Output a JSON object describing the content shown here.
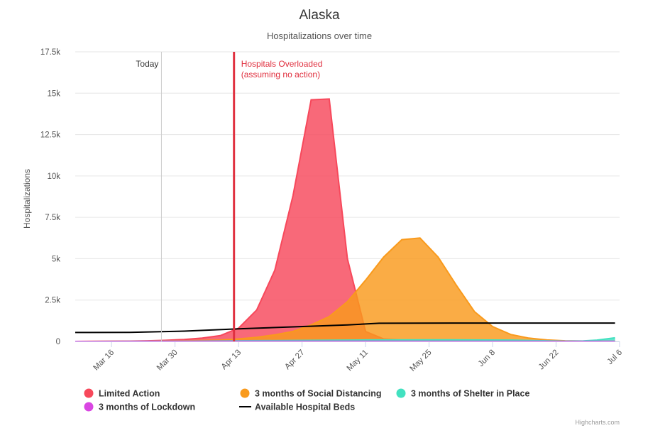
{
  "chart_data": {
    "type": "area",
    "title": "Alaska",
    "subtitle": "Hospitalizations over time",
    "ylabel": "Hospitalizations",
    "ylim": [
      0,
      17500
    ],
    "yticks": [
      0,
      2500,
      5000,
      7500,
      10000,
      12500,
      15000,
      17500
    ],
    "ytick_labels": [
      "0",
      "2.5k",
      "5k",
      "7.5k",
      "10k",
      "12.5k",
      "15k",
      "17.5k"
    ],
    "xlim": [
      "2020-03-08",
      "2020-07-06"
    ],
    "xticks": [
      "2020-03-16",
      "2020-03-30",
      "2020-04-13",
      "2020-04-27",
      "2020-05-11",
      "2020-05-25",
      "2020-06-08",
      "2020-06-22",
      "2020-07-06"
    ],
    "xtick_labels": [
      "Mar 16",
      "Mar 30",
      "Apr 13",
      "Apr 27",
      "May 11",
      "May 25",
      "Jun 8",
      "Jun 22",
      "Jul 6"
    ],
    "grid": true,
    "legend_position": "bottom",
    "plot_lines": [
      {
        "label": "Today",
        "x": "2020-03-27",
        "color": "#cccccc"
      },
      {
        "label_lines": [
          "Hospitals Overloaded",
          "(assuming no action)"
        ],
        "x": "2020-04-12",
        "color": "#e0303f"
      }
    ],
    "series": [
      {
        "name": "Limited Action",
        "kind": "area",
        "color": "#f7485b",
        "points": [
          [
            "2020-03-08",
            0
          ],
          [
            "2020-03-12",
            5
          ],
          [
            "2020-03-16",
            10
          ],
          [
            "2020-03-20",
            20
          ],
          [
            "2020-03-24",
            40
          ],
          [
            "2020-03-28",
            70
          ],
          [
            "2020-04-01",
            120
          ],
          [
            "2020-04-05",
            200
          ],
          [
            "2020-04-09",
            350
          ],
          [
            "2020-04-13",
            800
          ],
          [
            "2020-04-17",
            1900
          ],
          [
            "2020-04-21",
            4300
          ],
          [
            "2020-04-25",
            8800
          ],
          [
            "2020-04-29",
            14600
          ],
          [
            "2020-05-03",
            14650
          ],
          [
            "2020-05-07",
            5000
          ],
          [
            "2020-05-11",
            600
          ],
          [
            "2020-05-15",
            150
          ],
          [
            "2020-05-19",
            80
          ],
          [
            "2020-05-23",
            60
          ],
          [
            "2020-05-27",
            50
          ],
          [
            "2020-05-31",
            40
          ],
          [
            "2020-06-08",
            30
          ],
          [
            "2020-06-22",
            20
          ],
          [
            "2020-07-05",
            10
          ]
        ]
      },
      {
        "name": "3 months of Social Distancing",
        "kind": "area",
        "color": "#f99a1c",
        "points": [
          [
            "2020-03-08",
            0
          ],
          [
            "2020-03-16",
            10
          ],
          [
            "2020-03-24",
            20
          ],
          [
            "2020-04-01",
            40
          ],
          [
            "2020-04-09",
            80
          ],
          [
            "2020-04-13",
            150
          ],
          [
            "2020-04-17",
            250
          ],
          [
            "2020-04-21",
            400
          ],
          [
            "2020-04-25",
            600
          ],
          [
            "2020-04-29",
            1000
          ],
          [
            "2020-05-03",
            1500
          ],
          [
            "2020-05-07",
            2400
          ],
          [
            "2020-05-11",
            3700
          ],
          [
            "2020-05-15",
            5100
          ],
          [
            "2020-05-19",
            6150
          ],
          [
            "2020-05-23",
            6250
          ],
          [
            "2020-05-27",
            5100
          ],
          [
            "2020-05-31",
            3400
          ],
          [
            "2020-06-04",
            1800
          ],
          [
            "2020-06-08",
            900
          ],
          [
            "2020-06-12",
            420
          ],
          [
            "2020-06-16",
            200
          ],
          [
            "2020-06-20",
            90
          ],
          [
            "2020-06-24",
            40
          ],
          [
            "2020-06-28",
            20
          ],
          [
            "2020-07-05",
            10
          ]
        ]
      },
      {
        "name": "3 months of Shelter in Place",
        "kind": "area",
        "color": "#42e1c0",
        "points": [
          [
            "2020-03-08",
            0
          ],
          [
            "2020-03-24",
            10
          ],
          [
            "2020-04-09",
            30
          ],
          [
            "2020-04-25",
            60
          ],
          [
            "2020-05-11",
            90
          ],
          [
            "2020-05-27",
            100
          ],
          [
            "2020-06-12",
            80
          ],
          [
            "2020-06-20",
            40
          ],
          [
            "2020-06-24",
            20
          ],
          [
            "2020-06-28",
            30
          ],
          [
            "2020-07-01",
            80
          ],
          [
            "2020-07-05",
            220
          ]
        ]
      },
      {
        "name": "3 months of Lockdown",
        "kind": "area",
        "color": "#d946e2",
        "points": [
          [
            "2020-03-08",
            0
          ],
          [
            "2020-03-24",
            10
          ],
          [
            "2020-04-09",
            15
          ],
          [
            "2020-05-11",
            10
          ],
          [
            "2020-06-12",
            5
          ],
          [
            "2020-07-05",
            5
          ]
        ]
      },
      {
        "name": "Available Hospital Beds",
        "kind": "line",
        "color": "#000000",
        "points": [
          [
            "2020-03-08",
            540
          ],
          [
            "2020-03-20",
            550
          ],
          [
            "2020-04-01",
            620
          ],
          [
            "2020-04-13",
            760
          ],
          [
            "2020-04-25",
            880
          ],
          [
            "2020-05-07",
            1000
          ],
          [
            "2020-05-14",
            1100
          ],
          [
            "2020-06-01",
            1110
          ],
          [
            "2020-06-20",
            1110
          ],
          [
            "2020-07-05",
            1110
          ]
        ]
      }
    ],
    "credits": "Highcharts.com"
  }
}
